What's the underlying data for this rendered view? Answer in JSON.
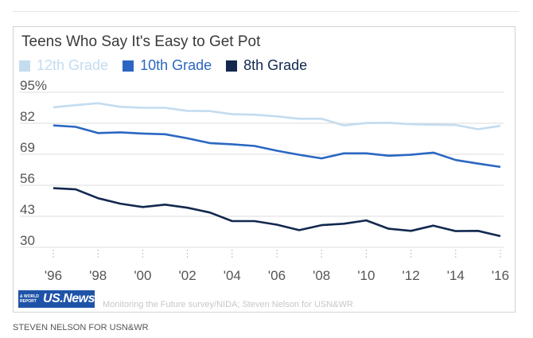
{
  "credit": "STEVEN NELSON FOR USN&WR",
  "logo": {
    "main": "US.News",
    "small": "& WORLD REPORT"
  },
  "source": "Monitoring the Future survey/NIDA; Steven Nelson for USN&WR",
  "chart_data": {
    "type": "line",
    "title": "Teens Who Say It's Easy to Get Pot",
    "xlabel": "",
    "ylabel": "",
    "x": [
      1996,
      1997,
      1998,
      1999,
      2000,
      2001,
      2002,
      2003,
      2004,
      2005,
      2006,
      2007,
      2008,
      2009,
      2010,
      2011,
      2012,
      2013,
      2014,
      2015,
      2016
    ],
    "xticks": [
      1996,
      1998,
      2000,
      2002,
      2004,
      2006,
      2008,
      2010,
      2012,
      2014,
      2016
    ],
    "xtick_labels": [
      "'96",
      "'98",
      "'00",
      "'02",
      "'04",
      "'06",
      "'08",
      "'10",
      "'12",
      "'14",
      "'16"
    ],
    "yticks": [
      30,
      43,
      56,
      69,
      82,
      95
    ],
    "ytick_labels": [
      "30",
      "43",
      "56",
      "69",
      "82",
      "95%"
    ],
    "ylim": [
      30,
      95
    ],
    "grid": true,
    "legend_position": "top-left",
    "series": [
      {
        "name": "12th Grade",
        "color": "#c3dcf0",
        "values": [
          88.7,
          89.6,
          90.4,
          88.9,
          88.5,
          88.5,
          87.2,
          87.1,
          85.8,
          85.6,
          84.9,
          83.9,
          83.9,
          81.1,
          82.1,
          82.2,
          81.6,
          81.4,
          81.3,
          79.5,
          80.9
        ]
      },
      {
        "name": "10th Grade",
        "color": "#2b67c2",
        "values": [
          81.1,
          80.5,
          77.9,
          78.2,
          77.7,
          77.4,
          75.7,
          73.7,
          73.2,
          72.5,
          70.5,
          68.8,
          67.3,
          69.4,
          69.4,
          68.4,
          68.8,
          69.7,
          66.6,
          65.1,
          63.7
        ]
      },
      {
        "name": "8th Grade",
        "color": "#12284f",
        "values": [
          54.8,
          54.3,
          50.6,
          48.3,
          46.9,
          47.9,
          46.6,
          44.6,
          41.0,
          41.0,
          39.5,
          37.2,
          39.3,
          39.9,
          41.3,
          37.8,
          36.9,
          39.1,
          36.8,
          36.9,
          34.7
        ]
      }
    ]
  }
}
